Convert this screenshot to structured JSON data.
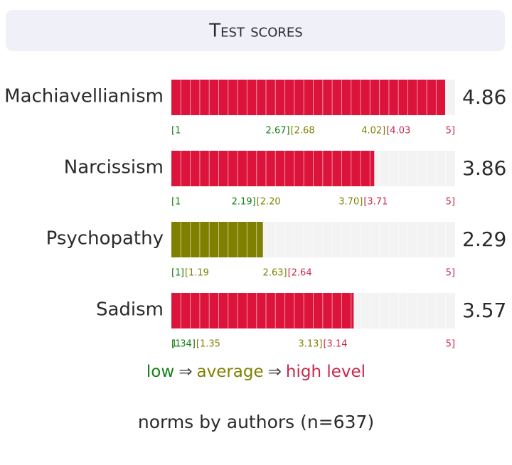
{
  "chart_data": {
    "type": "bar",
    "orientation": "horizontal",
    "title": "Test scores",
    "categories": [
      "Machiavellianism",
      "Narcissism",
      "Psychopathy",
      "Sadism"
    ],
    "values": [
      4.86,
      3.86,
      2.29,
      3.57
    ],
    "colors": [
      "#dc143c",
      "#dc143c",
      "#808000",
      "#dc143c"
    ],
    "xlim": [
      1,
      5
    ],
    "level_colors": [
      "#138013",
      "#808000",
      "#c8284a"
    ],
    "norm_ticks": [
      [
        {
          "value": 1,
          "label": "[1"
        },
        {
          "value": 2.67,
          "label": "2.67]"
        },
        {
          "value": 2.68,
          "label": "[2.68"
        },
        {
          "value": 4.02,
          "label": "4.02]"
        },
        {
          "value": 4.03,
          "label": "[4.03"
        },
        {
          "value": 5,
          "label": "5]"
        }
      ],
      [
        {
          "value": 1,
          "label": "[1"
        },
        {
          "value": 2.19,
          "label": "2.19]"
        },
        {
          "value": 2.2,
          "label": "[2.20"
        },
        {
          "value": 3.7,
          "label": "3.70]"
        },
        {
          "value": 3.71,
          "label": "[3.71"
        },
        {
          "value": 5,
          "label": "5]"
        }
      ],
      [
        {
          "value": 1,
          "label": "[1"
        },
        {
          "value": 1.18,
          "label": "]"
        },
        {
          "value": 1.19,
          "label": "[1.19"
        },
        {
          "value": 2.63,
          "label": "2.63]"
        },
        {
          "value": 2.64,
          "label": "[2.64"
        },
        {
          "value": 5,
          "label": "5]"
        }
      ],
      [
        {
          "value": 1,
          "label": "[1"
        },
        {
          "value": 1.34,
          "label": "1.34]"
        },
        {
          "value": 1.35,
          "label": "[1.35"
        },
        {
          "value": 3.13,
          "label": "3.13]"
        },
        {
          "value": 3.14,
          "label": "[3.14"
        },
        {
          "value": 5,
          "label": "5]"
        }
      ]
    ],
    "legend": {
      "items": [
        "low",
        "average",
        "high level"
      ],
      "separator": "⇒"
    },
    "note": "norms by authors (n=637)"
  }
}
